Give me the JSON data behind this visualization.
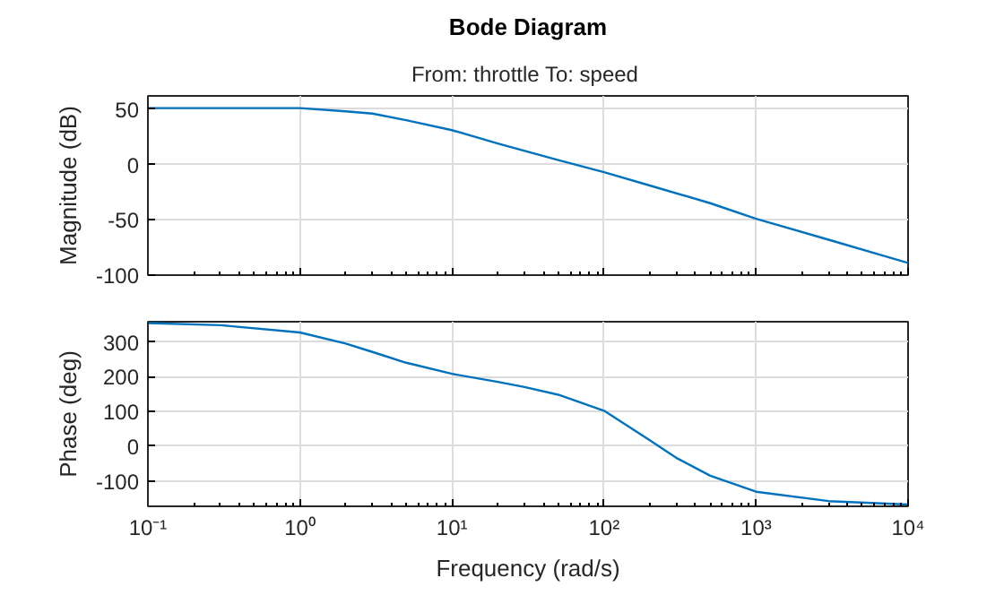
{
  "chart_data": [
    {
      "type": "line",
      "title": "Bode Diagram",
      "subtitle": "From: throttle  To: speed",
      "ylabel": "Magnitude (dB)",
      "log": "x",
      "grid": true,
      "tick_labels": "y",
      "xlim": [
        0.1,
        10000
      ],
      "xticks": [
        {
          "value": 0.1,
          "label": null
        },
        {
          "value": 1,
          "label": null
        },
        {
          "value": 10,
          "label": null
        },
        {
          "value": 100,
          "label": null
        },
        {
          "value": 1000,
          "label": null
        },
        {
          "value": 10000,
          "label": null
        }
      ],
      "ylim": [
        -100,
        62
      ],
      "yticks": [
        -100,
        -50,
        0,
        50
      ],
      "series": [
        {
          "color": "#0072bd",
          "x": [
            0.1,
            0.3,
            1,
            2,
            3,
            5,
            10,
            20,
            50,
            100,
            200,
            500,
            1000,
            3000,
            10000
          ],
          "values": [
            51,
            51,
            51,
            48,
            46,
            40,
            31,
            19,
            4,
            -7,
            -19,
            -35,
            -49,
            -68,
            -89
          ]
        }
      ]
    },
    {
      "type": "line",
      "xlabel": "Frequency (rad/s)",
      "ylabel": "Phase (deg)",
      "log": "x",
      "grid": true,
      "xlim": [
        0.1,
        10000
      ],
      "xticks": [
        {
          "value": 0.1,
          "label": "10⁻¹"
        },
        {
          "value": 1,
          "label": "10⁰"
        },
        {
          "value": 10,
          "label": "10¹"
        },
        {
          "value": 100,
          "label": "10²"
        },
        {
          "value": 1000,
          "label": "10³"
        },
        {
          "value": 10000,
          "label": "10⁴"
        }
      ],
      "ylim": [
        -173,
        358
      ],
      "yticks": [
        -100,
        0,
        100,
        200,
        300
      ],
      "series": [
        {
          "color": "#0072bd",
          "x": [
            0.1,
            0.3,
            1,
            2,
            3,
            5,
            10,
            20,
            30,
            50,
            100,
            200,
            300,
            500,
            1000,
            3000,
            10000
          ],
          "values": [
            354,
            348,
            327,
            295,
            271,
            240,
            208,
            185,
            170,
            148,
            102,
            17,
            -34,
            -85,
            -131,
            -158,
            -168
          ]
        }
      ]
    }
  ]
}
